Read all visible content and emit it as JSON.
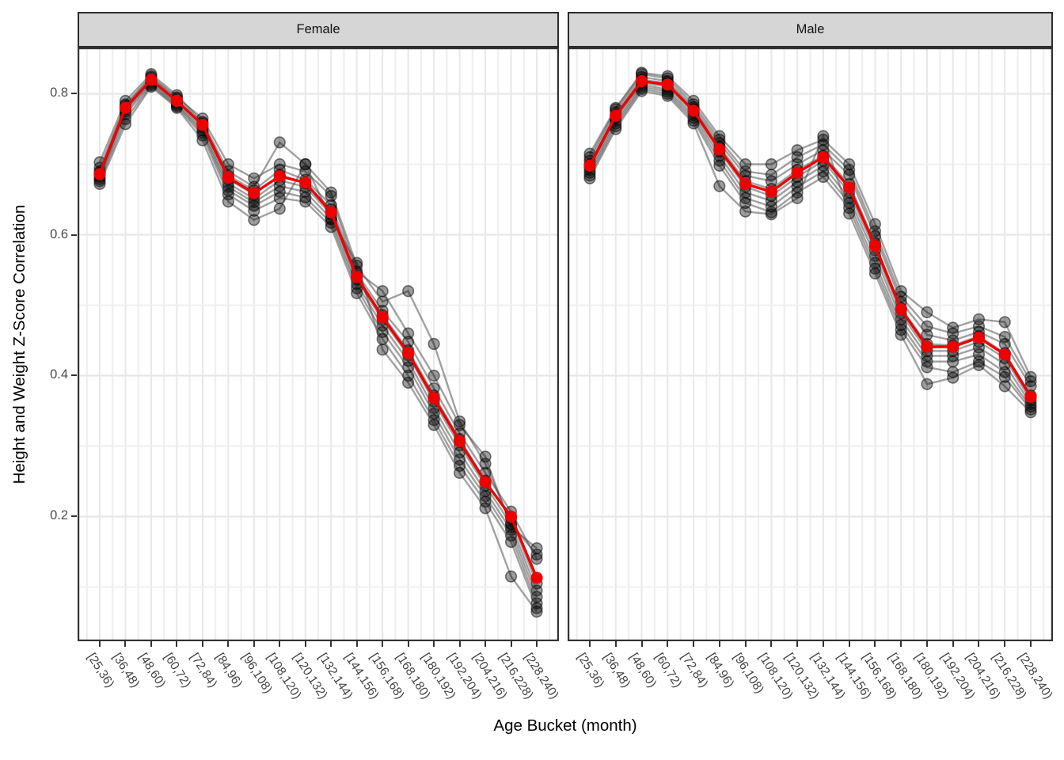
{
  "y_axis": {
    "title": "Height and Weight Z-Score Correlation",
    "ticks": [
      {
        "label": "0.8",
        "value": 0.8
      },
      {
        "label": "0.6",
        "value": 0.6
      },
      {
        "label": "0.4",
        "value": 0.4
      },
      {
        "label": "0.2",
        "value": 0.2
      }
    ]
  },
  "x_axis": {
    "title": "Age Bucket (month)"
  },
  "colors": {
    "mean_line": "#ee0000",
    "individual_point_fill": "rgba(0,0,0,0.38)",
    "individual_point_stroke": "rgba(0,0,0,0.5)",
    "individual_line": "rgba(70,70,70,0.5)",
    "grid_major": "#e8e8e8",
    "grid_minor": "#eeeeee",
    "panel_border": "#333333",
    "strip_fill": "#d6d6d6"
  },
  "chart_data": {
    "type": "line",
    "title": "",
    "xlabel": "Age Bucket (month)",
    "ylabel": "Height and Weight Z-Score Correlation",
    "ylim": [
      0.02,
      0.87
    ],
    "y_major_gridlines": [
      0.2,
      0.4,
      0.6,
      0.8
    ],
    "y_minor_gridlines": [
      0.1,
      0.3,
      0.5,
      0.7
    ],
    "grid": "on",
    "legend_position": "none",
    "categories": [
      "[25,36)",
      "[36,48)",
      "[48,60)",
      "[60,72)",
      "[72,84)",
      "[84,96)",
      "[96,108)",
      "[108,120)",
      "[120,132)",
      "[132,144)",
      "[144,156)",
      "[156,168)",
      "[168,180)",
      "[180,192)",
      "[192,204)",
      "[204,216)",
      "[216,228)",
      "[228,240)"
    ],
    "facets": [
      {
        "label": "Female",
        "mean_series": {
          "name": "mean",
          "values": [
            0.686,
            0.78,
            0.82,
            0.79,
            0.756,
            0.681,
            0.659,
            0.683,
            0.674,
            0.632,
            0.54,
            0.483,
            0.432,
            0.368,
            0.307,
            0.249,
            0.2,
            0.113
          ]
        },
        "series": [
          {
            "name": "series-1",
            "values": [
              0.703,
              0.79,
              0.828,
              0.798,
              0.76,
              0.69,
              0.668,
              0.731,
              0.7,
              0.66,
              0.556,
              0.505,
              0.52,
              0.445,
              0.335,
              0.275,
              0.19,
              0.146
            ]
          },
          {
            "name": "series-2",
            "values": [
              0.695,
              0.785,
              0.825,
              0.795,
              0.765,
              0.7,
              0.68,
              0.7,
              0.69,
              0.655,
              0.548,
              0.52,
              0.46,
              0.4,
              0.33,
              0.285,
              0.185,
              0.155
            ]
          },
          {
            "name": "series-3",
            "values": [
              0.69,
              0.783,
              0.823,
              0.793,
              0.758,
              0.684,
              0.663,
              0.692,
              0.678,
              0.642,
              0.545,
              0.492,
              0.448,
              0.382,
              0.318,
              0.262,
              0.207,
              0.14
            ]
          },
          {
            "name": "series-4",
            "values": [
              0.688,
              0.78,
              0.82,
              0.79,
              0.755,
              0.679,
              0.657,
              0.685,
              0.673,
              0.636,
              0.54,
              0.486,
              0.436,
              0.372,
              0.31,
              0.251,
              0.197,
              0.105
            ]
          },
          {
            "name": "series-5",
            "values": [
              0.685,
              0.778,
              0.818,
              0.788,
              0.752,
              0.673,
              0.651,
              0.677,
              0.668,
              0.629,
              0.536,
              0.479,
              0.429,
              0.363,
              0.301,
              0.244,
              0.189,
              0.095
            ]
          },
          {
            "name": "series-6",
            "values": [
              0.682,
              0.775,
              0.816,
              0.786,
              0.748,
              0.668,
              0.646,
              0.669,
              0.661,
              0.623,
              0.53,
              0.471,
              0.421,
              0.354,
              0.291,
              0.236,
              0.181,
              0.086
            ]
          },
          {
            "name": "series-7",
            "values": [
              0.679,
              0.771,
              0.814,
              0.784,
              0.745,
              0.663,
              0.641,
              0.661,
              0.653,
              0.617,
              0.524,
              0.462,
              0.412,
              0.346,
              0.281,
              0.229,
              0.173,
              0.077
            ]
          },
          {
            "name": "series-8",
            "values": [
              0.676,
              0.764,
              0.812,
              0.782,
              0.741,
              0.657,
              0.634,
              0.652,
              0.647,
              0.611,
              0.517,
              0.452,
              0.4,
              0.337,
              0.272,
              0.221,
              0.164,
              0.07
            ]
          },
          {
            "name": "series-9",
            "values": [
              0.672,
              0.757,
              0.81,
              0.78,
              0.734,
              0.647,
              0.621,
              0.637,
              0.7,
              0.622,
              0.56,
              0.437,
              0.39,
              0.33,
              0.262,
              0.212,
              0.115,
              0.065
            ]
          }
        ]
      },
      {
        "label": "Male",
        "mean_series": {
          "name": "mean",
          "values": [
            0.698,
            0.769,
            0.818,
            0.813,
            0.776,
            0.721,
            0.672,
            0.661,
            0.688,
            0.71,
            0.667,
            0.584,
            0.494,
            0.441,
            0.441,
            0.454,
            0.43,
            0.37
          ]
        },
        "series": [
          {
            "name": "series-1",
            "values": [
              0.715,
              0.78,
              0.83,
              0.825,
              0.79,
              0.74,
              0.7,
              0.7,
              0.72,
              0.735,
              0.7,
              0.615,
              0.52,
              0.49,
              0.468,
              0.48,
              0.476,
              0.398
            ]
          },
          {
            "name": "series-2",
            "values": [
              0.71,
              0.778,
              0.828,
              0.822,
              0.785,
              0.735,
              0.69,
              0.685,
              0.71,
              0.728,
              0.692,
              0.605,
              0.512,
              0.47,
              0.46,
              0.47,
              0.455,
              0.392
            ]
          },
          {
            "name": "series-3",
            "values": [
              0.705,
              0.774,
              0.824,
              0.818,
              0.781,
              0.73,
              0.684,
              0.676,
              0.7,
              0.72,
              0.685,
              0.598,
              0.505,
              0.458,
              0.45,
              0.462,
              0.445,
              0.385
            ]
          },
          {
            "name": "series-4",
            "values": [
              0.7,
              0.77,
              0.82,
              0.815,
              0.778,
              0.725,
              0.676,
              0.665,
              0.692,
              0.712,
              0.672,
              0.588,
              0.496,
              0.445,
              0.443,
              0.456,
              0.432,
              0.372
            ]
          },
          {
            "name": "series-5",
            "values": [
              0.696,
              0.766,
              0.816,
              0.81,
              0.774,
              0.718,
              0.668,
              0.655,
              0.682,
              0.705,
              0.66,
              0.578,
              0.488,
              0.435,
              0.435,
              0.448,
              0.425,
              0.365
            ]
          },
          {
            "name": "series-6",
            "values": [
              0.692,
              0.762,
              0.813,
              0.806,
              0.77,
              0.712,
              0.66,
              0.648,
              0.675,
              0.698,
              0.652,
              0.57,
              0.48,
              0.428,
              0.428,
              0.44,
              0.416,
              0.36
            ]
          },
          {
            "name": "series-7",
            "values": [
              0.688,
              0.758,
              0.81,
              0.803,
              0.766,
              0.705,
              0.652,
              0.64,
              0.668,
              0.69,
              0.645,
              0.56,
              0.472,
              0.42,
              0.42,
              0.43,
              0.405,
              0.356
            ]
          },
          {
            "name": "series-8",
            "values": [
              0.684,
              0.754,
              0.807,
              0.8,
              0.762,
              0.698,
              0.645,
              0.632,
              0.66,
              0.682,
              0.638,
              0.552,
              0.465,
              0.412,
              0.405,
              0.42,
              0.398,
              0.352
            ]
          },
          {
            "name": "series-9",
            "values": [
              0.68,
              0.75,
              0.804,
              0.797,
              0.758,
              0.669,
              0.633,
              0.629,
              0.652,
              0.74,
              0.63,
              0.545,
              0.458,
              0.388,
              0.397,
              0.415,
              0.385,
              0.348
            ]
          }
        ]
      }
    ]
  }
}
